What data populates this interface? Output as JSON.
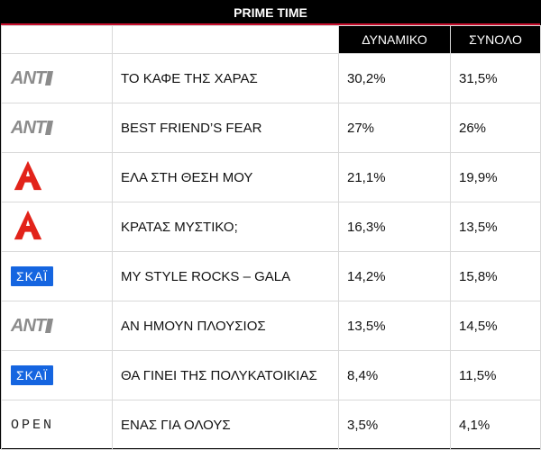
{
  "header": {
    "title": "PRIME TIME"
  },
  "columns": {
    "dynamic": "ΔΥΝΑΜΙΚΟ",
    "total": "ΣΥΝΟΛΟ"
  },
  "rows": [
    {
      "channel": "ANT1",
      "logo": "ant1-logo",
      "show": "ΤΟ ΚΑΦΕ ΤΗΣ ΧΑΡΑΣ",
      "dynamic": "30,2%",
      "total": "31,5%"
    },
    {
      "channel": "ANT1",
      "logo": "ant1-logo",
      "show": "BEST FRIEND’S FEAR",
      "dynamic": "27%",
      "total": "26%"
    },
    {
      "channel": "ALPHA",
      "logo": "alpha-logo",
      "show": "ΕΛΑ ΣΤΗ ΘΕΣΗ ΜΟΥ",
      "dynamic": "21,1%",
      "total": "19,9%"
    },
    {
      "channel": "ALPHA",
      "logo": "alpha-logo",
      "show": "ΚΡΑΤΑΣ ΜΥΣΤΙΚΟ;",
      "dynamic": "16,3%",
      "total": "13,5%"
    },
    {
      "channel": "ΣΚΑΪ",
      "logo": "skai-logo",
      "show": "MY STYLE ROCKS – GALA",
      "dynamic": "14,2%",
      "total": "15,8%"
    },
    {
      "channel": "ANT1",
      "logo": "ant1-logo",
      "show": "ΑΝ ΗΜΟΥΝ ΠΛΟΥΣΙΟΣ",
      "dynamic": "13,5%",
      "total": "14,5%"
    },
    {
      "channel": "ΣΚΑΪ",
      "logo": "skai-logo",
      "show": "ΘΑ ΓΙΝΕΙ ΤΗΣ ΠΟΛΥΚΑΤΟΙΚΙΑΣ",
      "dynamic": "8,4%",
      "total": "11,5%"
    },
    {
      "channel": "OPEN",
      "logo": "open-logo",
      "show": "ΕΝΑΣ ΓΙΑ ΟΛΟΥΣ",
      "dynamic": "3,5%",
      "total": "4,1%"
    }
  ],
  "logos": {
    "ant1": "ANT",
    "skai": "ΣΚΑΪ",
    "open": "OPEN"
  },
  "colors": {
    "alpha_red": "#e2231a",
    "skai_blue": "#1565e0",
    "header_bg": "#000000"
  }
}
